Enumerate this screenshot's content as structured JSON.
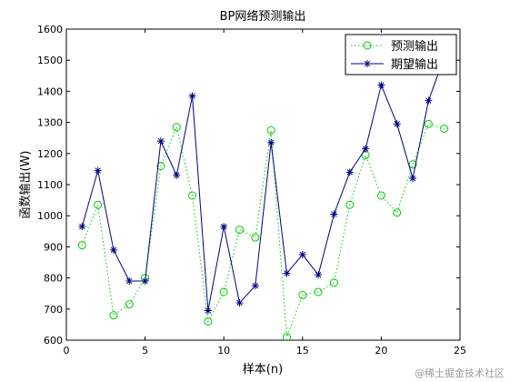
{
  "chart_data": {
    "type": "line",
    "title": "BP网络预测输出",
    "xlabel": "样本(n)",
    "ylabel": "函数输出(W)",
    "xlim": [
      0,
      25
    ],
    "ylim": [
      600,
      1600
    ],
    "xticks": [
      0,
      5,
      10,
      15,
      20,
      25
    ],
    "yticks": [
      600,
      700,
      800,
      900,
      1000,
      1100,
      1200,
      1300,
      1400,
      1500,
      1600
    ],
    "grid": false,
    "legend_position": "top-right",
    "x": [
      1,
      2,
      3,
      4,
      5,
      6,
      7,
      8,
      9,
      10,
      11,
      12,
      13,
      14,
      15,
      16,
      17,
      18,
      19,
      20,
      21,
      22,
      23,
      24
    ],
    "series": [
      {
        "name": "预测输出",
        "color": "#00cc00",
        "line_style": "dotted",
        "marker": "circle",
        "values": [
          905,
          1035,
          680,
          715,
          800,
          1160,
          1285,
          1065,
          660,
          755,
          955,
          930,
          1275,
          610,
          745,
          755,
          785,
          1035,
          1195,
          1065,
          1010,
          1165,
          1295,
          1280
        ]
      },
      {
        "name": "期望输出",
        "color": "#000080",
        "line_style": "solid",
        "marker": "star",
        "values": [
          965,
          1145,
          890,
          790,
          790,
          1240,
          1130,
          1385,
          695,
          965,
          720,
          775,
          1235,
          815,
          875,
          810,
          1005,
          1140,
          1215,
          1420,
          1295,
          1120,
          1370,
          1510
        ]
      }
    ]
  },
  "watermark": "@稀土掘金技术社区"
}
